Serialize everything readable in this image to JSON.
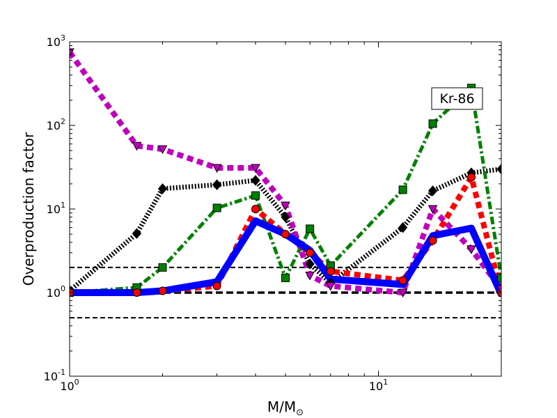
{
  "chart_data": {
    "type": "line",
    "title": "",
    "xlabel": "M/M",
    "xlabel_subscript": "⊙",
    "ylabel": "Overproduction factor",
    "xscale": "log",
    "yscale": "log",
    "xlim": [
      1,
      25
    ],
    "ylim": [
      0.1,
      1000
    ],
    "x_ticks": [
      {
        "value": 1,
        "base": "10",
        "exp": "0"
      },
      {
        "value": 10,
        "base": "10",
        "exp": "1"
      }
    ],
    "y_ticks": [
      {
        "value": 0.1,
        "base": "10",
        "exp": "-1"
      },
      {
        "value": 1,
        "base": "10",
        "exp": "0"
      },
      {
        "value": 10,
        "base": "10",
        "exp": "1"
      },
      {
        "value": 100,
        "base": "10",
        "exp": "2"
      },
      {
        "value": 1000,
        "base": "10",
        "exp": "3"
      }
    ],
    "annotation": "Kr-86",
    "reference_lines": [
      {
        "y": 0.5,
        "style": "dashed",
        "color": "#000000"
      },
      {
        "y": 1,
        "style": "dashed-bold",
        "color": "#000000"
      },
      {
        "y": 2,
        "style": "dashed",
        "color": "#000000"
      }
    ],
    "series": [
      {
        "color": "#000000",
        "linestyle": "dotted",
        "marker": "diamond",
        "x": [
          1,
          1.65,
          2,
          3,
          4,
          5,
          6,
          7,
          12,
          15,
          20,
          25
        ],
        "y": [
          1.05,
          5.1,
          17.5,
          19.5,
          22,
          8,
          2.2,
          1.3,
          6,
          16.5,
          27,
          30
        ]
      },
      {
        "color": "#008000",
        "linestyle": "dashdot",
        "marker": "square",
        "x": [
          1,
          1.65,
          2,
          3,
          4,
          5,
          6,
          7,
          12,
          15,
          20,
          25
        ],
        "y": [
          1.0,
          1.15,
          2.0,
          10.3,
          14.5,
          1.5,
          5.8,
          2.1,
          17,
          105,
          280,
          1.5
        ]
      },
      {
        "color": "#ff0000",
        "linestyle": "dashed",
        "marker": "circle",
        "x": [
          1,
          1.65,
          2,
          3,
          4,
          5,
          6,
          7,
          12,
          15,
          20,
          25
        ],
        "y": [
          1.0,
          1.0,
          1.05,
          1.2,
          10,
          5,
          3,
          1.8,
          1.4,
          4.2,
          24,
          1.0
        ]
      },
      {
        "color": "#bf00bf",
        "linestyle": "dashed",
        "marker": "triangle-down",
        "x": [
          1,
          1.65,
          2,
          3,
          4,
          5,
          6,
          7,
          12,
          15,
          20,
          25
        ],
        "y": [
          750,
          57,
          52,
          31,
          31,
          11,
          1.6,
          1.2,
          1.0,
          10,
          3.3,
          1.1
        ]
      },
      {
        "color": "#0000ff",
        "linestyle": "solid",
        "marker": "none",
        "x": [
          1,
          1.65,
          2,
          3,
          4,
          5,
          6,
          7,
          12,
          15,
          20,
          25
        ],
        "y": [
          1.0,
          1.0,
          1.05,
          1.35,
          7.2,
          5,
          3.2,
          1.45,
          1.25,
          4.8,
          5.9,
          0.95
        ]
      }
    ]
  }
}
